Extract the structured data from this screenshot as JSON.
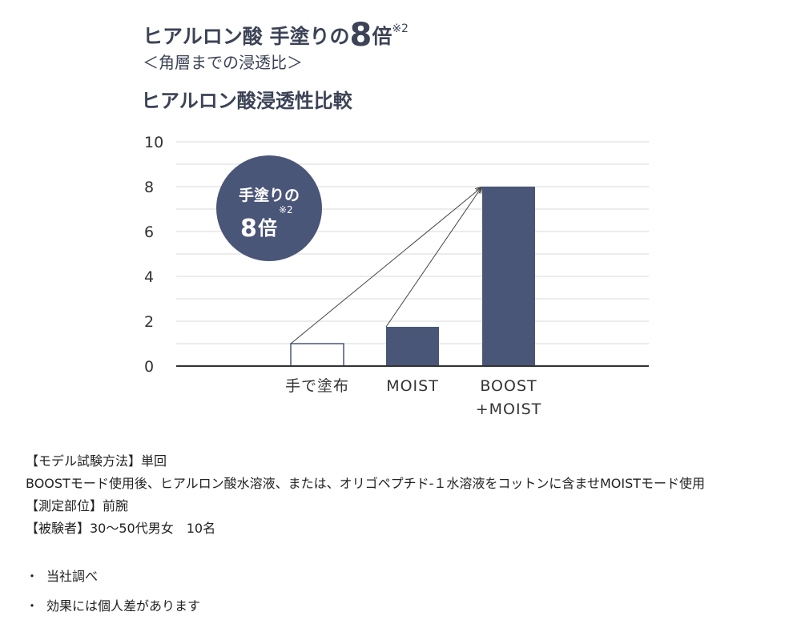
{
  "headline": {
    "prefix": "ヒアルロン酸 手塗りの",
    "big": "8",
    "suffix": "倍",
    "note": "※2"
  },
  "subhead": "＜角層までの浸透比＞",
  "chart_data": {
    "type": "bar",
    "title": "ヒアルロン酸浸透性比較",
    "categories": [
      "手で塗布",
      "MOIST",
      "BOOST\n+MOIST"
    ],
    "category_lines": [
      [
        "手で塗布"
      ],
      [
        "MOIST"
      ],
      [
        "BOOST",
        "+MOIST"
      ]
    ],
    "values": [
      1,
      1.75,
      8
    ],
    "bar_styles": [
      "outline",
      "filled",
      "filled"
    ],
    "ylim": [
      0,
      10
    ],
    "yticks": [
      "0",
      "2",
      "4",
      "6",
      "8",
      "10"
    ],
    "grid": true,
    "xlabel": "",
    "ylabel": "",
    "badge": {
      "line1": "手塗りの",
      "big": "8",
      "suffix": "倍",
      "note": "※2"
    },
    "arrows": [
      {
        "from": "手で塗布",
        "to": "BOOST\n+MOIST"
      },
      {
        "from": "MOIST",
        "to": "BOOST\n+MOIST"
      }
    ],
    "colors": {
      "bar": "#4a5678",
      "axis": "#333333",
      "grid": "#d9d9d9",
      "badge": "#4a5678"
    }
  },
  "notes": [
    "【モデル試験方法】単回",
    "BOOSTモード使用後、ヒアルロン酸水溶液、または、オリゴペプチド-１水溶液をコットンに含ませMOISTモード使用",
    "【測定部位】前腕",
    "【被験者】30〜50代男女　10名"
  ],
  "bullets": [
    "当社調べ",
    "効果には個人差があります"
  ]
}
